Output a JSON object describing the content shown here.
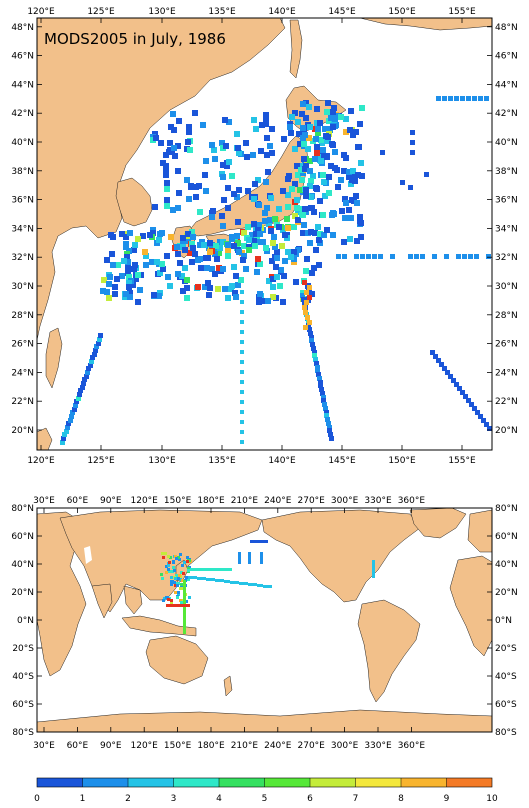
{
  "regional_map": {
    "title": "MODS2005 in July, 1986",
    "lon_labels": [
      "120°E",
      "125°E",
      "130°E",
      "135°E",
      "140°E",
      "145°E",
      "150°E",
      "155°E"
    ],
    "lat_labels": [
      "20°N",
      "22°N",
      "24°N",
      "26°N",
      "28°N",
      "30°N",
      "32°N",
      "34°N",
      "36°N",
      "38°N",
      "40°N",
      "42°N",
      "44°N",
      "46°N",
      "48°N"
    ]
  },
  "global_map": {
    "lon_labels": [
      "30°E",
      "60°E",
      "90°E",
      "120°E",
      "150°E",
      "180°E",
      "210°E",
      "240°E",
      "270°E",
      "300°E",
      "330°E",
      "360°E"
    ],
    "lat_labels": [
      "80°S",
      "60°S",
      "40°S",
      "20°S",
      "0°N",
      "20°N",
      "40°N",
      "60°N",
      "80°N"
    ]
  },
  "colorbar": {
    "labels": [
      "0",
      "1",
      "2",
      "3",
      "4",
      "5",
      "6",
      "7",
      "8",
      "9",
      "10"
    ],
    "colors": [
      "#1a55d9",
      "#1d8fea",
      "#24c3e6",
      "#2ee8c8",
      "#35e060",
      "#56e838",
      "#c4ec3a",
      "#f4e83c",
      "#f8b42e",
      "#f47a26",
      "#e6321e"
    ]
  },
  "colors": {
    "land": "#f2c08a",
    "ocean": "#ffffff"
  }
}
